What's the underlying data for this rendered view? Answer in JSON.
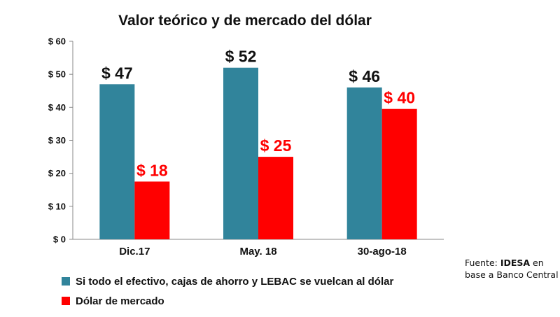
{
  "chart_data": {
    "type": "bar",
    "title": "Valor teórico y de mercado del dólar",
    "categories": [
      "Dic.17",
      "May. 18",
      "30-ago-18"
    ],
    "series": [
      {
        "name": "Si todo el efectivo, cajas de ahorro y LEBAC se vuelcan al dólar",
        "values": [
          47,
          52,
          46
        ],
        "value_labels": [
          "$ 47",
          "$ 52",
          "$ 46"
        ],
        "color": "#31849B"
      },
      {
        "name": "Dólar de mercado",
        "values": [
          17.5,
          25,
          39.5
        ],
        "value_labels": [
          "$ 18",
          "$ 25",
          "$ 40"
        ],
        "color": "#FF0000"
      }
    ],
    "value_label_colors": [
      "#111111",
      "#FF0000"
    ],
    "ylim": [
      0,
      60
    ],
    "yticks": [
      0,
      10,
      20,
      30,
      40,
      50,
      60
    ],
    "ytick_labels": [
      "$ 0",
      "$ 10",
      "$ 20",
      "$ 30",
      "$ 40",
      "$ 50",
      "$ 60"
    ],
    "grid": false,
    "legend_position": "bottom-left"
  },
  "source": {
    "prefix": "Fuente: ",
    "org": "IDESA",
    "suffix": " en base a Banco Central"
  }
}
